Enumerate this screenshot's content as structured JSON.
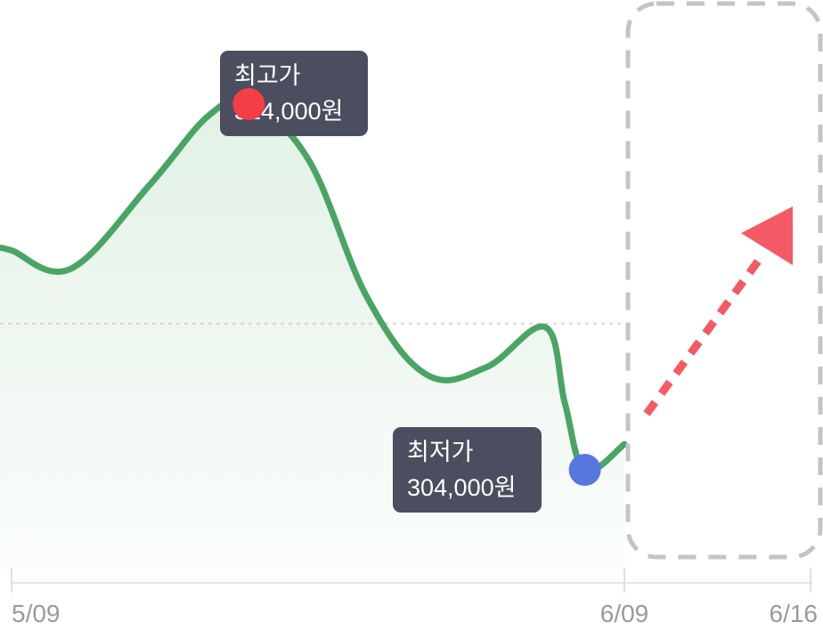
{
  "chart_data": {
    "type": "line",
    "x_ticks": [
      "5/09",
      "6/09",
      "6/16"
    ],
    "series": [
      {
        "values": [
          {
            "date": "5/09",
            "price": 310000
          },
          {
            "date": "5/12",
            "price": 309500
          },
          {
            "date": "5/16",
            "price": 311800
          },
          {
            "date": "5/19",
            "price": 313700
          },
          {
            "date": "5/21",
            "price": 314000
          },
          {
            "date": "5/24",
            "price": 312500
          },
          {
            "date": "5/27",
            "price": 308700
          },
          {
            "date": "5/30",
            "price": 306600
          },
          {
            "date": "6/02",
            "price": 306800
          },
          {
            "date": "6/05",
            "price": 307900
          },
          {
            "date": "6/06",
            "price": 305800
          },
          {
            "date": "6/07",
            "price": 304000
          },
          {
            "date": "6/09",
            "price": 304700
          }
        ]
      }
    ],
    "reference_line_price": 308000,
    "high": {
      "label": "최고가",
      "value": "314,000원",
      "date": "5/21",
      "price": 314000
    },
    "low": {
      "label": "최저가",
      "value": "304,000원",
      "date": "6/07",
      "price": 304000
    },
    "forecast_region": {
      "from": "6/09",
      "to": "6/16",
      "trend": "up"
    },
    "colors": {
      "line": "#4aa564",
      "area": "#e2f1e6",
      "high_dot": "#f53d48",
      "low_dot": "#5677e0",
      "tooltip_bg": "#4b4e5e",
      "arrow": "#f45a66",
      "forecast_border": "#c4c4c4"
    }
  }
}
